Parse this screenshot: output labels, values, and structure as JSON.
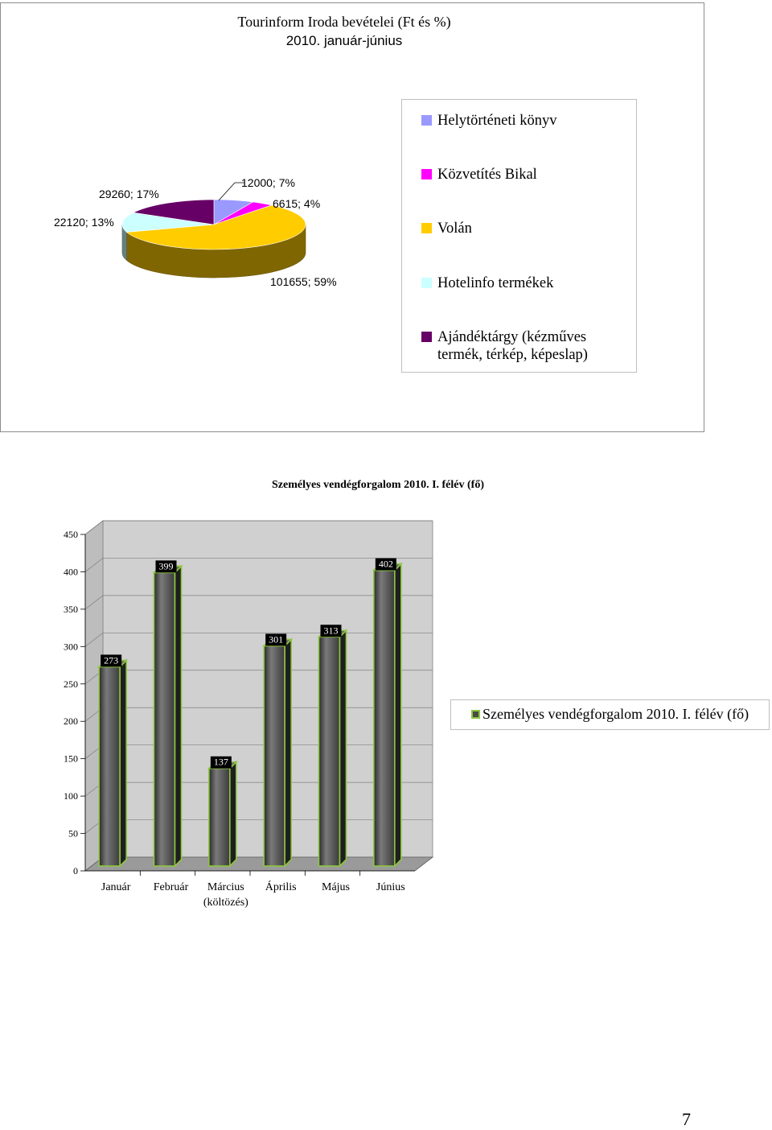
{
  "chart_data": [
    {
      "type": "pie",
      "title": "Tourinform Iroda bevételei (Ft és %)",
      "subtitle": "2010. január-június",
      "slices": [
        {
          "name": "Helytörténeti könyv",
          "value": 12000,
          "percent": 7,
          "label": "12000; 7%",
          "color": "#9999ff"
        },
        {
          "name": "Közvetítés Bikal",
          "value": 6615,
          "percent": 4,
          "label": "6615; 4%",
          "color": "#ff00ff"
        },
        {
          "name": "Volán",
          "value": 101655,
          "percent": 59,
          "label": "101655; 59%",
          "color": "#ffcc00"
        },
        {
          "name": "Hotelinfo termékek",
          "value": 22120,
          "percent": 13,
          "label": "22120; 13%",
          "color": "#ccffff"
        },
        {
          "name": "Ajándéktárgy (kézműves termék, térkép, képeslap)",
          "value": 29260,
          "percent": 17,
          "label": "29260; 17%",
          "color": "#660066"
        }
      ],
      "legend": {
        "position": "right",
        "items": [
          "Helytörténeti könyv",
          "Közvetítés Bikal",
          "Volán",
          "Hotelinfo termékek"
        ],
        "last_item_lines": [
          "Ajándéktárgy (kézműves",
          "termék, térkép, képeslap)"
        ]
      }
    },
    {
      "type": "bar",
      "title": "Személyes vendégforgalom 2010. I. félév (fő)",
      "categories": [
        "Január",
        "Február",
        "Március (költözés)",
        "Április",
        "Május",
        "Június"
      ],
      "category_lines": [
        [
          "Január"
        ],
        [
          "Február"
        ],
        [
          "Március",
          "(költözés)"
        ],
        [
          "Április"
        ],
        [
          "Május"
        ],
        [
          "Június"
        ]
      ],
      "series": [
        {
          "name": "Személyes vendégforgalom 2010. I. félév (fő)",
          "values": [
            273,
            399,
            137,
            301,
            313,
            402
          ]
        }
      ],
      "yticks": [
        "0",
        "50",
        "100",
        "150",
        "200",
        "250",
        "300",
        "350",
        "400",
        "450"
      ],
      "ylim": [
        0,
        450
      ],
      "grid": true,
      "legend": "right",
      "colors": {
        "bar": "#4a4a4a",
        "bar_outline": "#8dc63f",
        "wall": "#d0d0d0"
      }
    }
  ],
  "page": {
    "number": "7"
  }
}
